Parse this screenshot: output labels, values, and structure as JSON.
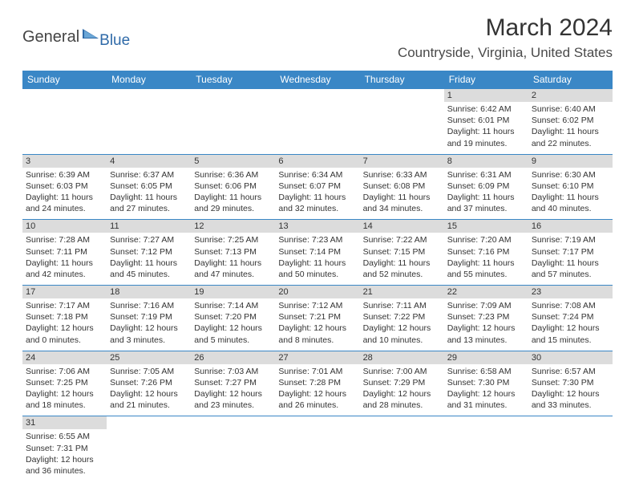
{
  "logo": {
    "part1": "General",
    "part2": "Blue"
  },
  "title": "March 2024",
  "location": "Countryside, Virginia, United States",
  "dayHeaders": [
    "Sunday",
    "Monday",
    "Tuesday",
    "Wednesday",
    "Thursday",
    "Friday",
    "Saturday"
  ],
  "colors": {
    "header_bg": "#3a87c6",
    "header_text": "#ffffff",
    "daynum_bg": "#dcdcdc",
    "border": "#3a87c6",
    "logo_blue": "#2f6aa8",
    "text": "#333333"
  },
  "weeks": [
    [
      null,
      null,
      null,
      null,
      null,
      {
        "n": "1",
        "sr": "Sunrise: 6:42 AM",
        "ss": "Sunset: 6:01 PM",
        "dl": "Daylight: 11 hours and 19 minutes."
      },
      {
        "n": "2",
        "sr": "Sunrise: 6:40 AM",
        "ss": "Sunset: 6:02 PM",
        "dl": "Daylight: 11 hours and 22 minutes."
      }
    ],
    [
      {
        "n": "3",
        "sr": "Sunrise: 6:39 AM",
        "ss": "Sunset: 6:03 PM",
        "dl": "Daylight: 11 hours and 24 minutes."
      },
      {
        "n": "4",
        "sr": "Sunrise: 6:37 AM",
        "ss": "Sunset: 6:05 PM",
        "dl": "Daylight: 11 hours and 27 minutes."
      },
      {
        "n": "5",
        "sr": "Sunrise: 6:36 AM",
        "ss": "Sunset: 6:06 PM",
        "dl": "Daylight: 11 hours and 29 minutes."
      },
      {
        "n": "6",
        "sr": "Sunrise: 6:34 AM",
        "ss": "Sunset: 6:07 PM",
        "dl": "Daylight: 11 hours and 32 minutes."
      },
      {
        "n": "7",
        "sr": "Sunrise: 6:33 AM",
        "ss": "Sunset: 6:08 PM",
        "dl": "Daylight: 11 hours and 34 minutes."
      },
      {
        "n": "8",
        "sr": "Sunrise: 6:31 AM",
        "ss": "Sunset: 6:09 PM",
        "dl": "Daylight: 11 hours and 37 minutes."
      },
      {
        "n": "9",
        "sr": "Sunrise: 6:30 AM",
        "ss": "Sunset: 6:10 PM",
        "dl": "Daylight: 11 hours and 40 minutes."
      }
    ],
    [
      {
        "n": "10",
        "sr": "Sunrise: 7:28 AM",
        "ss": "Sunset: 7:11 PM",
        "dl": "Daylight: 11 hours and 42 minutes."
      },
      {
        "n": "11",
        "sr": "Sunrise: 7:27 AM",
        "ss": "Sunset: 7:12 PM",
        "dl": "Daylight: 11 hours and 45 minutes."
      },
      {
        "n": "12",
        "sr": "Sunrise: 7:25 AM",
        "ss": "Sunset: 7:13 PM",
        "dl": "Daylight: 11 hours and 47 minutes."
      },
      {
        "n": "13",
        "sr": "Sunrise: 7:23 AM",
        "ss": "Sunset: 7:14 PM",
        "dl": "Daylight: 11 hours and 50 minutes."
      },
      {
        "n": "14",
        "sr": "Sunrise: 7:22 AM",
        "ss": "Sunset: 7:15 PM",
        "dl": "Daylight: 11 hours and 52 minutes."
      },
      {
        "n": "15",
        "sr": "Sunrise: 7:20 AM",
        "ss": "Sunset: 7:16 PM",
        "dl": "Daylight: 11 hours and 55 minutes."
      },
      {
        "n": "16",
        "sr": "Sunrise: 7:19 AM",
        "ss": "Sunset: 7:17 PM",
        "dl": "Daylight: 11 hours and 57 minutes."
      }
    ],
    [
      {
        "n": "17",
        "sr": "Sunrise: 7:17 AM",
        "ss": "Sunset: 7:18 PM",
        "dl": "Daylight: 12 hours and 0 minutes."
      },
      {
        "n": "18",
        "sr": "Sunrise: 7:16 AM",
        "ss": "Sunset: 7:19 PM",
        "dl": "Daylight: 12 hours and 3 minutes."
      },
      {
        "n": "19",
        "sr": "Sunrise: 7:14 AM",
        "ss": "Sunset: 7:20 PM",
        "dl": "Daylight: 12 hours and 5 minutes."
      },
      {
        "n": "20",
        "sr": "Sunrise: 7:12 AM",
        "ss": "Sunset: 7:21 PM",
        "dl": "Daylight: 12 hours and 8 minutes."
      },
      {
        "n": "21",
        "sr": "Sunrise: 7:11 AM",
        "ss": "Sunset: 7:22 PM",
        "dl": "Daylight: 12 hours and 10 minutes."
      },
      {
        "n": "22",
        "sr": "Sunrise: 7:09 AM",
        "ss": "Sunset: 7:23 PM",
        "dl": "Daylight: 12 hours and 13 minutes."
      },
      {
        "n": "23",
        "sr": "Sunrise: 7:08 AM",
        "ss": "Sunset: 7:24 PM",
        "dl": "Daylight: 12 hours and 15 minutes."
      }
    ],
    [
      {
        "n": "24",
        "sr": "Sunrise: 7:06 AM",
        "ss": "Sunset: 7:25 PM",
        "dl": "Daylight: 12 hours and 18 minutes."
      },
      {
        "n": "25",
        "sr": "Sunrise: 7:05 AM",
        "ss": "Sunset: 7:26 PM",
        "dl": "Daylight: 12 hours and 21 minutes."
      },
      {
        "n": "26",
        "sr": "Sunrise: 7:03 AM",
        "ss": "Sunset: 7:27 PM",
        "dl": "Daylight: 12 hours and 23 minutes."
      },
      {
        "n": "27",
        "sr": "Sunrise: 7:01 AM",
        "ss": "Sunset: 7:28 PM",
        "dl": "Daylight: 12 hours and 26 minutes."
      },
      {
        "n": "28",
        "sr": "Sunrise: 7:00 AM",
        "ss": "Sunset: 7:29 PM",
        "dl": "Daylight: 12 hours and 28 minutes."
      },
      {
        "n": "29",
        "sr": "Sunrise: 6:58 AM",
        "ss": "Sunset: 7:30 PM",
        "dl": "Daylight: 12 hours and 31 minutes."
      },
      {
        "n": "30",
        "sr": "Sunrise: 6:57 AM",
        "ss": "Sunset: 7:30 PM",
        "dl": "Daylight: 12 hours and 33 minutes."
      }
    ],
    [
      {
        "n": "31",
        "sr": "Sunrise: 6:55 AM",
        "ss": "Sunset: 7:31 PM",
        "dl": "Daylight: 12 hours and 36 minutes."
      },
      null,
      null,
      null,
      null,
      null,
      null
    ]
  ]
}
